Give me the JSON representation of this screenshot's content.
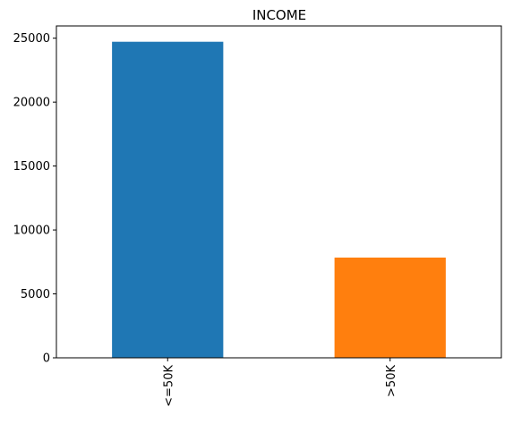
{
  "chart_data": {
    "type": "bar",
    "title": "INCOME",
    "xlabel": "",
    "ylabel": "",
    "categories": [
      "<=50K",
      ">50K"
    ],
    "values": [
      24720,
      7841
    ],
    "colors": [
      "#1f77b4",
      "#ff7f0e"
    ],
    "ylim": [
      0,
      25958
    ],
    "yticks": [
      0,
      5000,
      10000,
      15000,
      20000,
      25000
    ],
    "ytick_labels": [
      "0",
      "5000",
      "10000",
      "15000",
      "20000",
      "25000"
    ],
    "grid": false,
    "legend": "none"
  }
}
